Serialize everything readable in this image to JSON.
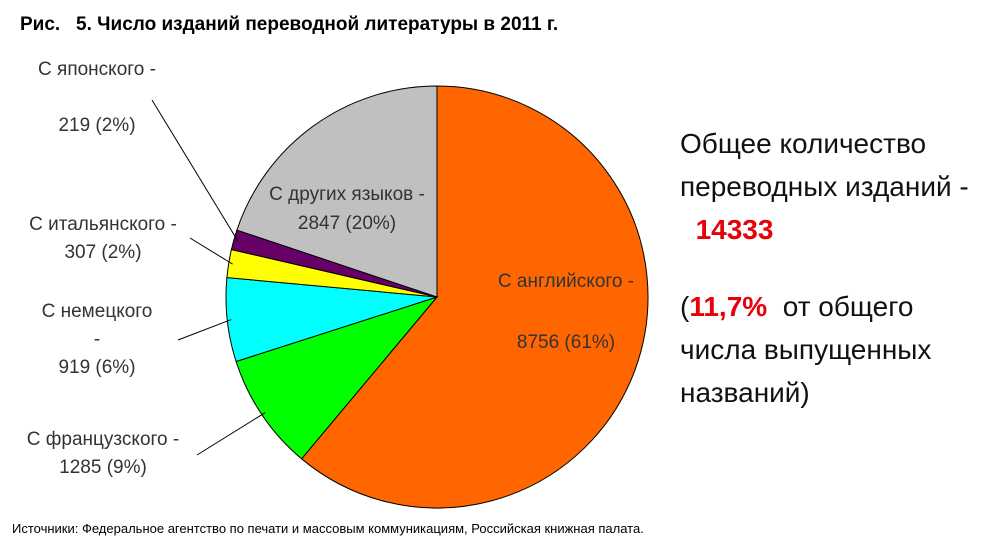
{
  "chart_data": {
    "type": "pie",
    "title": "Рис.   5. Число изданий переводной литературы в 2011 г.",
    "categories": [
      "С английского -",
      "С французского -",
      "С немецкого -",
      "С итальянского -",
      "С японского -",
      "С других языков -"
    ],
    "values": [
      8756,
      1285,
      919,
      307,
      219,
      2847
    ],
    "value_labels": [
      "8756 (61%)",
      "1285 (9%)",
      "919 (6%)",
      "307 (2%)",
      "219 (2%)",
      "2847 (20%)"
    ],
    "colors": [
      "#ff6600",
      "#00ff00",
      "#00ffff",
      "#ffff00",
      "#660066",
      "#c0c0c0"
    ],
    "note": {
      "text": "Общее количество переводных изданий -",
      "total": 14333,
      "open": "(",
      "share": "11,7%",
      "rest": "от общего числа выпущенных названий)"
    },
    "source": "Источники: Федеральное агентство по печати и массовым коммуникациям, Российская книжная палата."
  }
}
